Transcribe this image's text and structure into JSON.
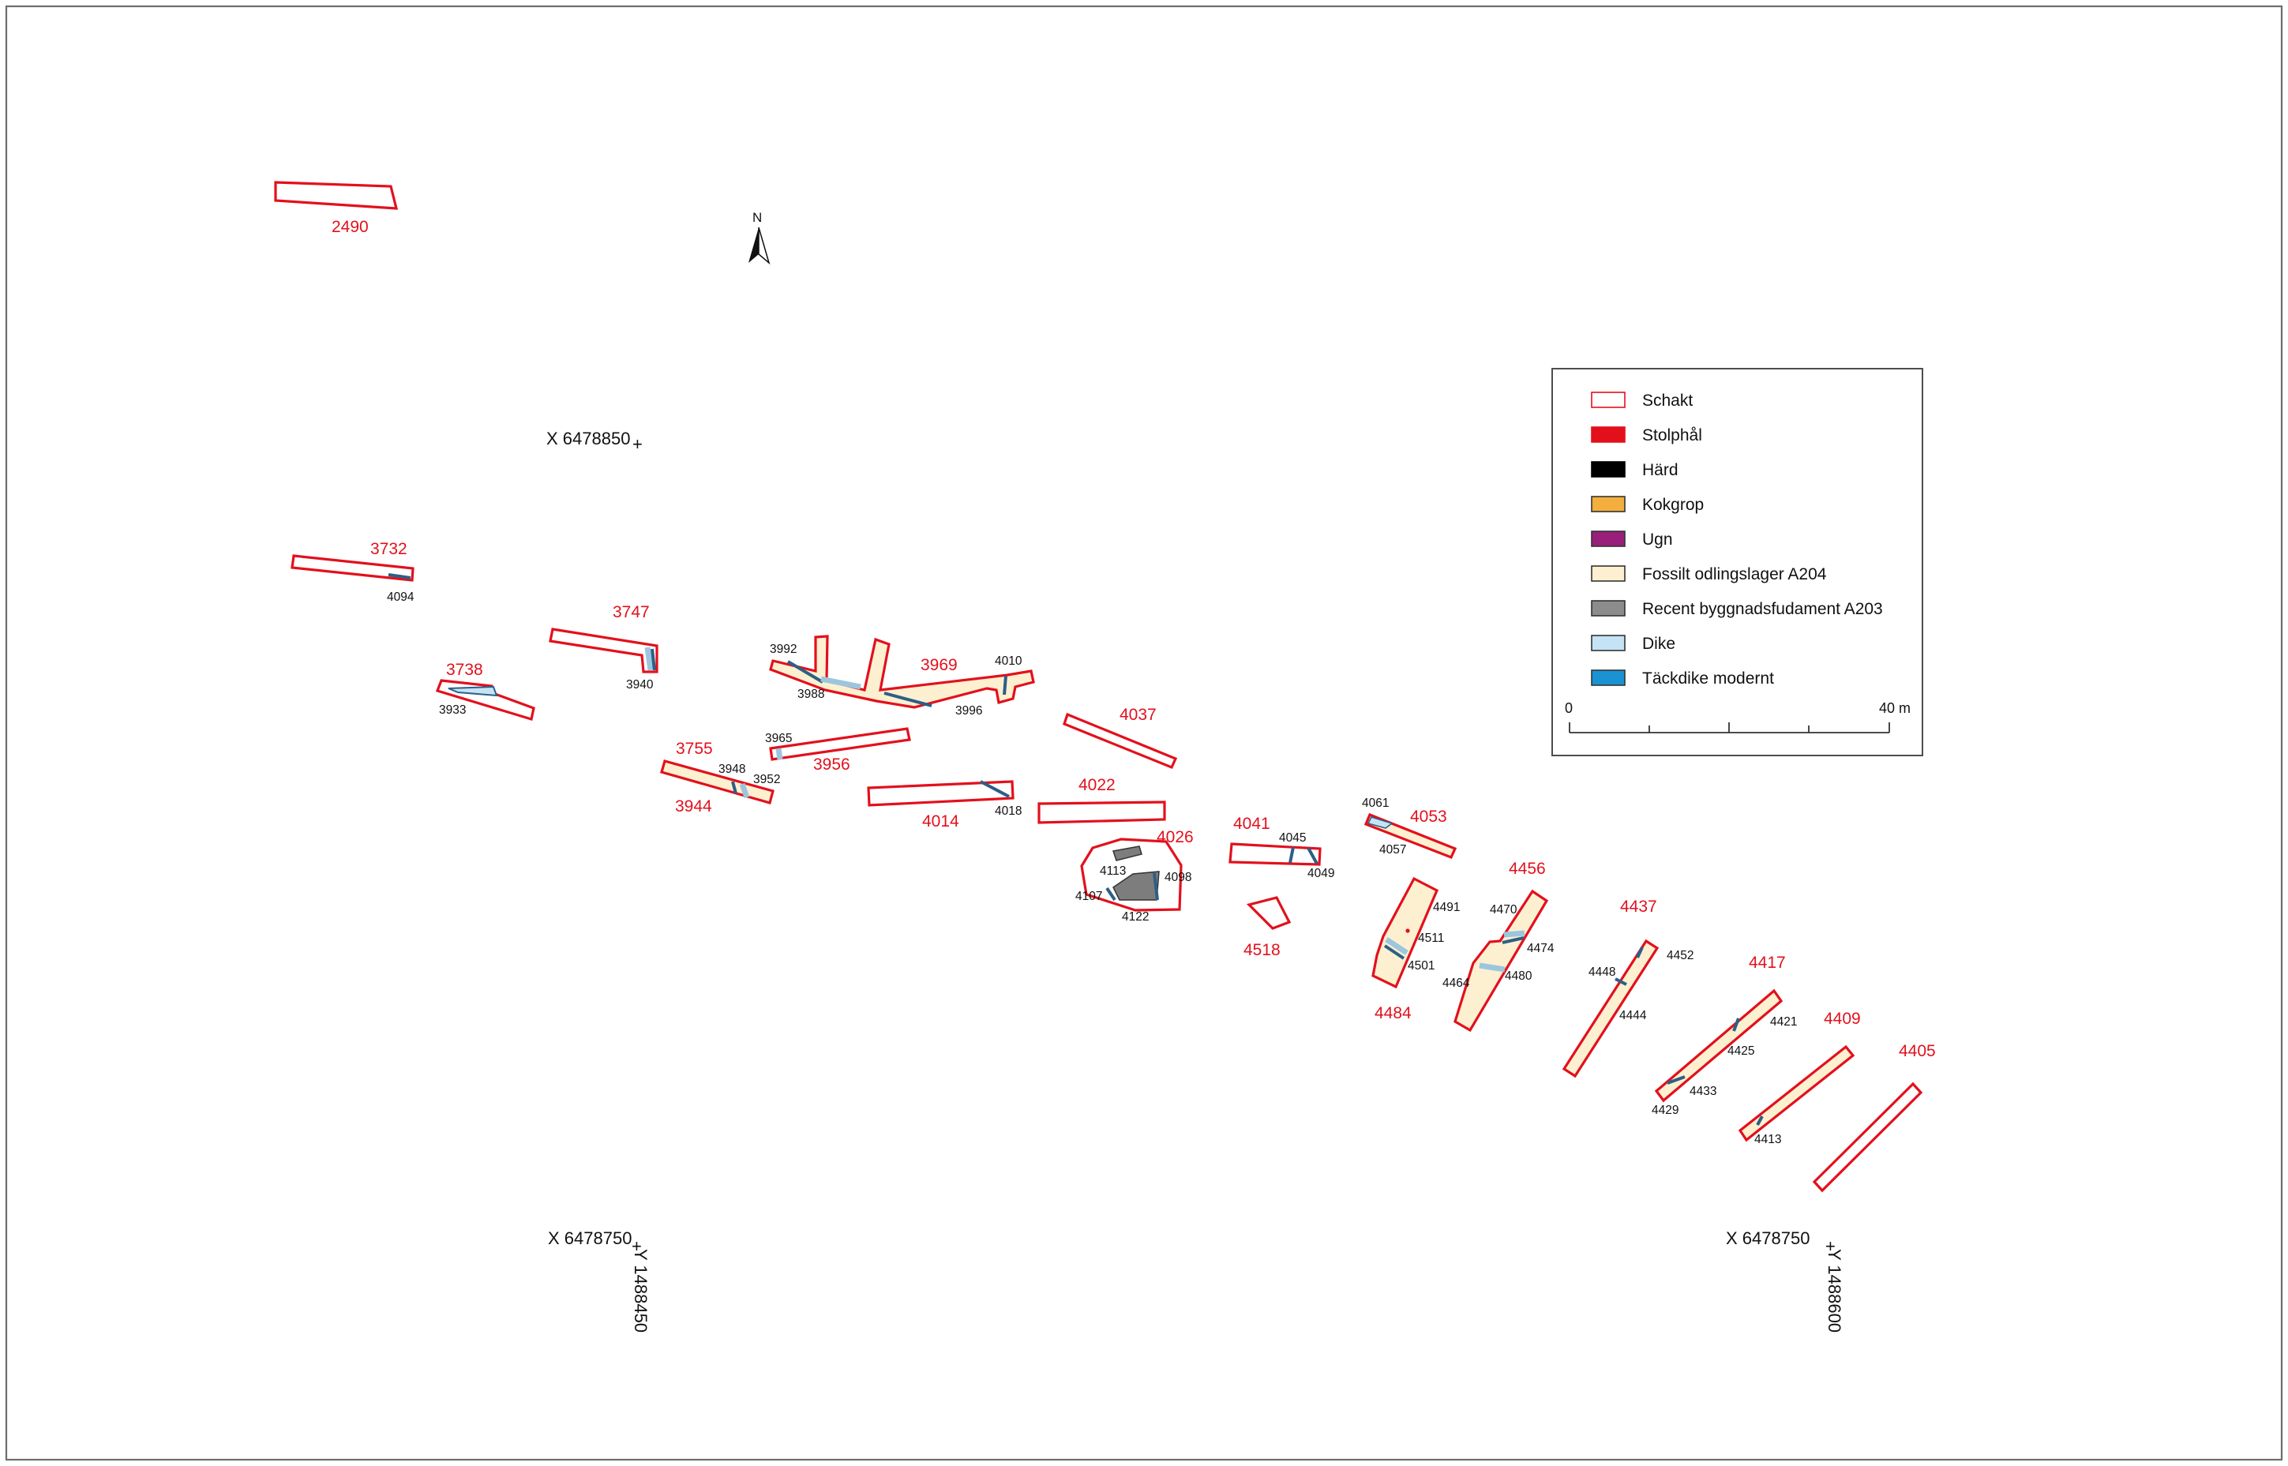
{
  "north_label": "N",
  "legend": {
    "items": [
      {
        "label": "Schakt",
        "swatch_fill": "#ffffff",
        "swatch_stroke": "#e3101c"
      },
      {
        "label": "Stolphål",
        "swatch_fill": "#e3101c",
        "swatch_stroke": "#e3101c"
      },
      {
        "label": "Härd",
        "swatch_fill": "#000000",
        "swatch_stroke": "#000000"
      },
      {
        "label": "Kokgrop",
        "swatch_fill": "#f3ae3d",
        "swatch_stroke": "#333333"
      },
      {
        "label": "Ugn",
        "swatch_fill": "#98207a",
        "swatch_stroke": "#333333"
      },
      {
        "label": "Fossilt odlingslager A204",
        "swatch_fill": "#fdf0d1",
        "swatch_stroke": "#333333"
      },
      {
        "label": "Recent byggnadsfudament A203",
        "swatch_fill": "#8c8c8c",
        "swatch_stroke": "#333333"
      },
      {
        "label": "Dike",
        "swatch_fill": "#c4e4f5",
        "swatch_stroke": "#333333"
      },
      {
        "label": "Täckdike modernt",
        "swatch_fill": "#1a93d3",
        "swatch_stroke": "#333333"
      }
    ],
    "scale": {
      "start": "0",
      "end": "40 m"
    }
  },
  "coordinates": {
    "top_left": "X 6478850",
    "bottom_left": "X 6478750",
    "bottom_right": "X 6478750",
    "y_left": "Y 1488450",
    "y_right": "Y 1488600"
  },
  "trench_labels": [
    "2490",
    "3732",
    "3747",
    "3738",
    "3969",
    "4037",
    "3755",
    "3956",
    "3944",
    "4014",
    "4022",
    "4026",
    "4041",
    "4053",
    "4518",
    "4456",
    "4484",
    "4437",
    "4417",
    "4409",
    "4405"
  ],
  "feature_labels": [
    "4094",
    "3940",
    "3933",
    "3992",
    "3988",
    "3996",
    "4010",
    "3965",
    "3948",
    "3952",
    "4018",
    "4113",
    "4098",
    "4107",
    "4122",
    "4045",
    "4049",
    "4061",
    "4057",
    "4491",
    "4511",
    "4501",
    "4470",
    "4474",
    "4480",
    "4464",
    "4448",
    "4452",
    "4444",
    "4421",
    "4425",
    "4433",
    "4429",
    "4413"
  ],
  "colors": {
    "schakt": "#e3101c",
    "odlingslager": "#fdf0d1",
    "dike": "#c4e4f5",
    "tackdike": "#1a93d3",
    "fundament": "#8c8c8c"
  }
}
